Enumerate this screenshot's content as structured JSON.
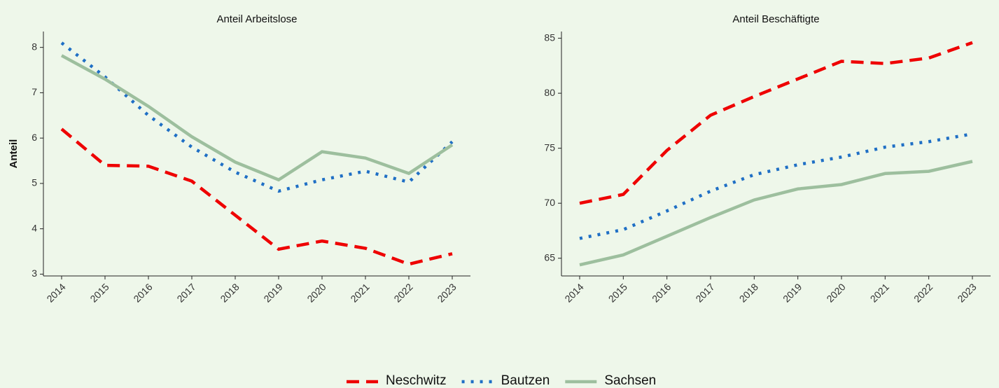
{
  "chart_data": [
    {
      "type": "line",
      "title": "Anteil Arbeitslose",
      "ylabel": "Anteil",
      "categories": [
        "2014",
        "2015",
        "2016",
        "2017",
        "2018",
        "2019",
        "2020",
        "2021",
        "2022",
        "2023"
      ],
      "ylim": [
        2.96,
        8.35
      ],
      "yticks": [
        3,
        4,
        5,
        6,
        7,
        8
      ],
      "series": [
        {
          "name": "Neschwitz",
          "color": "#ee0000",
          "dash": "dashed",
          "values": [
            6.2,
            5.4,
            5.38,
            5.05,
            4.3,
            3.55,
            3.73,
            3.57,
            3.22,
            3.45
          ]
        },
        {
          "name": "Bautzen",
          "color": "#1f6fc5",
          "dash": "dotted",
          "values": [
            8.1,
            7.35,
            6.5,
            5.8,
            5.25,
            4.83,
            5.08,
            5.27,
            5.03,
            5.92
          ]
        },
        {
          "name": "Sachsen",
          "color": "#9dbf9e",
          "dash": "solid",
          "values": [
            7.82,
            7.3,
            6.7,
            6.03,
            5.47,
            5.08,
            5.7,
            5.56,
            5.22,
            5.85
          ]
        }
      ]
    },
    {
      "type": "line",
      "title": "Anteil Beschäftigte",
      "categories": [
        "2014",
        "2015",
        "2016",
        "2017",
        "2018",
        "2019",
        "2020",
        "2021",
        "2022",
        "2023"
      ],
      "ylim": [
        63.39,
        85.61
      ],
      "yticks": [
        65,
        70,
        75,
        80,
        85
      ],
      "series": [
        {
          "name": "Neschwitz",
          "color": "#ee0000",
          "dash": "dashed",
          "values": [
            70.0,
            70.8,
            74.8,
            78.0,
            79.7,
            81.3,
            82.9,
            82.7,
            83.2,
            84.6
          ]
        },
        {
          "name": "Bautzen",
          "color": "#1f6fc5",
          "dash": "dotted",
          "values": [
            66.8,
            67.6,
            69.3,
            71.1,
            72.6,
            73.5,
            74.2,
            75.1,
            75.6,
            76.3
          ]
        },
        {
          "name": "Sachsen",
          "color": "#9dbf9e",
          "dash": "solid",
          "values": [
            64.4,
            65.3,
            67.0,
            68.7,
            70.3,
            71.3,
            71.7,
            72.7,
            72.9,
            73.8
          ]
        }
      ]
    }
  ]
}
